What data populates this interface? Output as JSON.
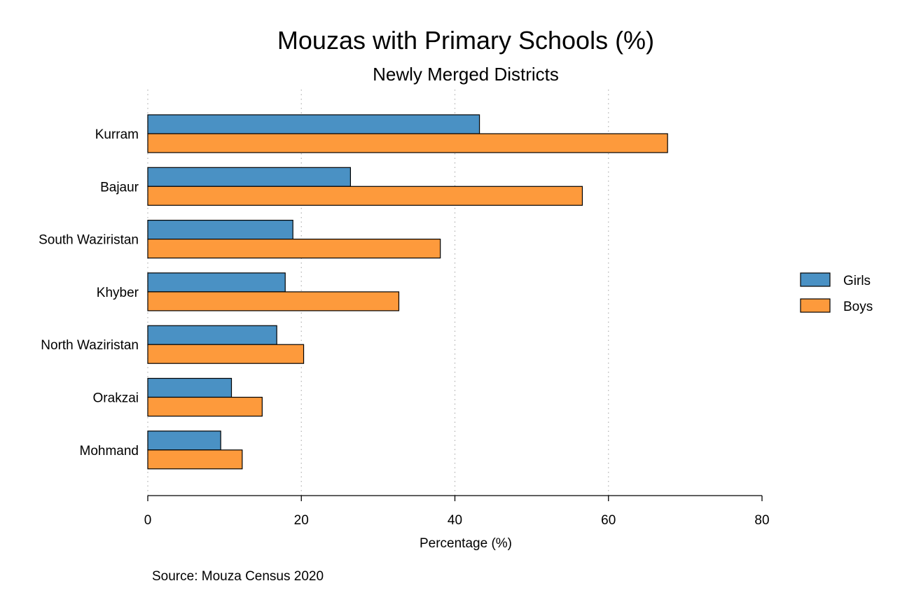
{
  "chart_data": {
    "type": "bar",
    "orientation": "horizontal",
    "title": "Mouzas with Primary Schools (%)",
    "subtitle": "Newly Merged Districts",
    "xlabel": "Percentage (%)",
    "ylabel": "",
    "categories": [
      "Kurram",
      "Bajaur",
      "South Waziristan",
      "Khyber",
      "North Waziristan",
      "Orakzai",
      "Mohmand"
    ],
    "series": [
      {
        "name": "Girls",
        "color": "#4a91c4",
        "values": [
          43.2,
          26.4,
          18.9,
          17.9,
          16.8,
          10.9,
          9.5
        ]
      },
      {
        "name": "Boys",
        "color": "#fd9a3c",
        "values": [
          67.7,
          56.6,
          38.1,
          32.7,
          20.3,
          14.9,
          12.3
        ]
      }
    ],
    "xlim": [
      0,
      80
    ],
    "xticks": [
      0,
      20,
      40,
      60,
      80
    ],
    "grid": true,
    "legend": "right",
    "source": "Source: Mouza Census 2020"
  }
}
